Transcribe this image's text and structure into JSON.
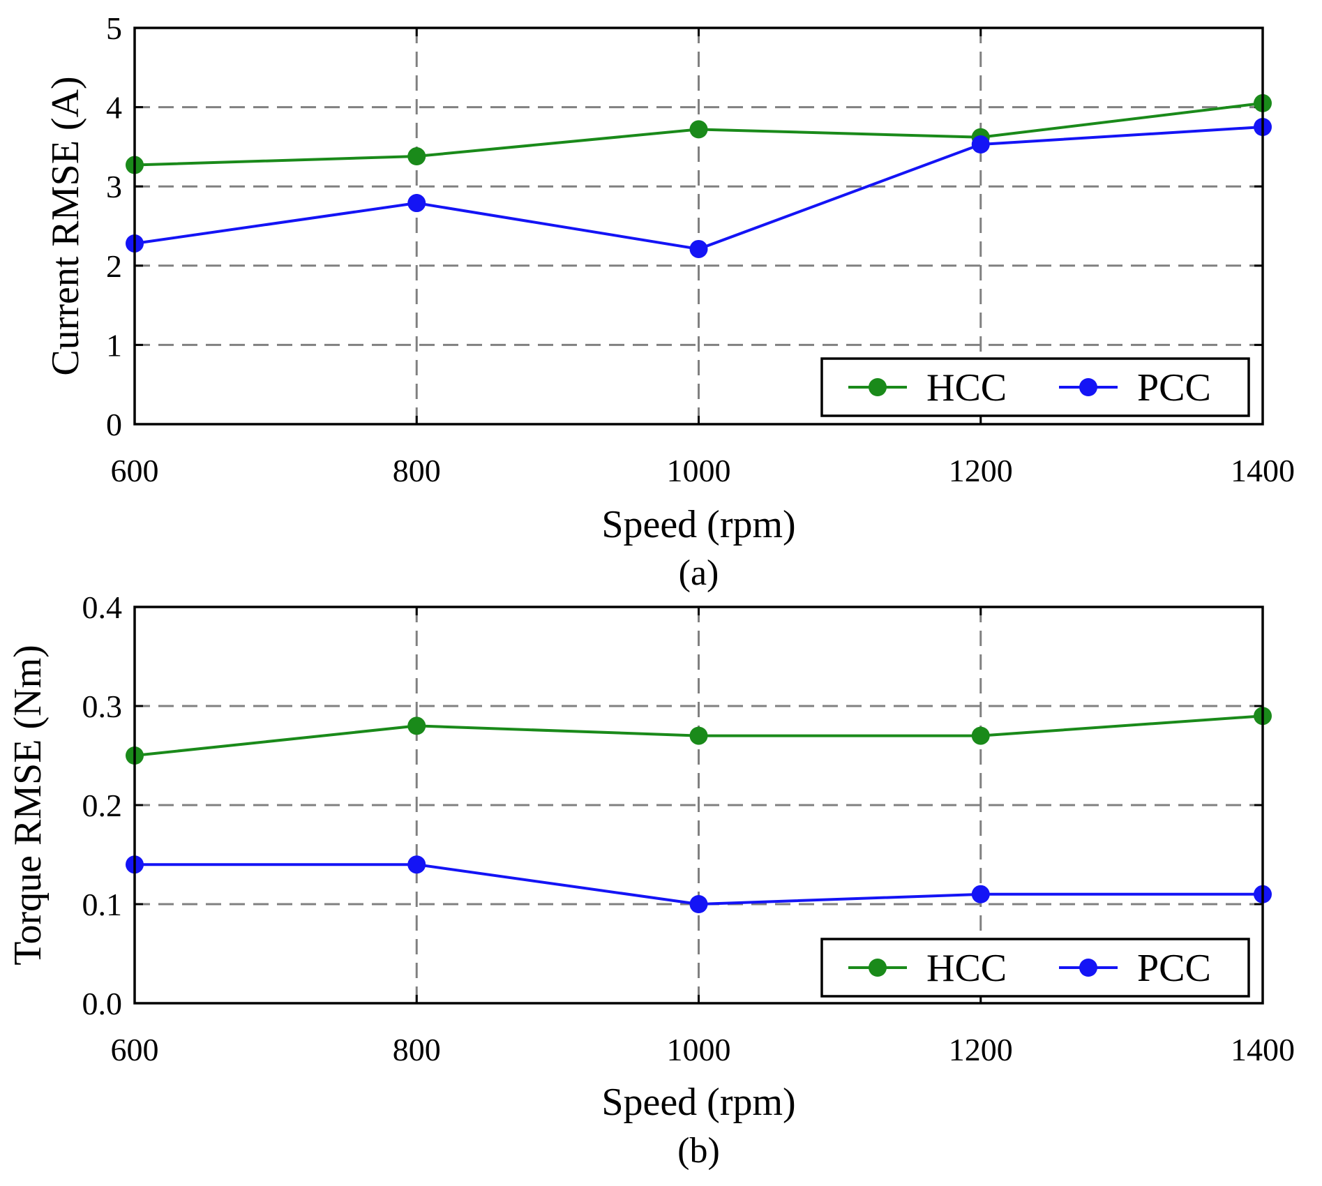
{
  "chart_data": [
    {
      "type": "line",
      "panel_label": "(a)",
      "xlabel": "Speed (rpm)",
      "ylabel": "Current RMSE (A)",
      "xlim": [
        600,
        1400
      ],
      "ylim": [
        0,
        5
      ],
      "x": [
        600,
        800,
        1000,
        1200,
        1400
      ],
      "xticks": [
        "600",
        "800",
        "1000",
        "1200",
        "1400"
      ],
      "yticks": [
        "0",
        "1",
        "2",
        "3",
        "4",
        "5"
      ],
      "ytick_values": [
        0,
        1,
        2,
        3,
        4,
        5
      ],
      "grid": true,
      "legend_position": "bottom-right",
      "series": [
        {
          "name": "HCC",
          "color": "#1a8a1a",
          "values": [
            3.27,
            3.38,
            3.72,
            3.62,
            4.05
          ]
        },
        {
          "name": "PCC",
          "color": "#1414f5",
          "values": [
            2.28,
            2.79,
            2.21,
            3.53,
            3.75
          ]
        }
      ]
    },
    {
      "type": "line",
      "panel_label": "(b)",
      "xlabel": "Speed (rpm)",
      "ylabel": "Torque RMSE (Nm)",
      "xlim": [
        600,
        1400
      ],
      "ylim": [
        0,
        0.4
      ],
      "x": [
        600,
        800,
        1000,
        1200,
        1400
      ],
      "xticks": [
        "600",
        "800",
        "1000",
        "1200",
        "1400"
      ],
      "yticks": [
        "0.0",
        "0.1",
        "0.2",
        "0.3",
        "0.4"
      ],
      "ytick_values": [
        0,
        0.1,
        0.2,
        0.3,
        0.4
      ],
      "grid": true,
      "legend_position": "bottom-right",
      "series": [
        {
          "name": "HCC",
          "color": "#1a8a1a",
          "values": [
            0.25,
            0.28,
            0.27,
            0.27,
            0.29
          ]
        },
        {
          "name": "PCC",
          "color": "#1414f5",
          "values": [
            0.14,
            0.14,
            0.1,
            0.11,
            0.11
          ]
        }
      ]
    }
  ]
}
